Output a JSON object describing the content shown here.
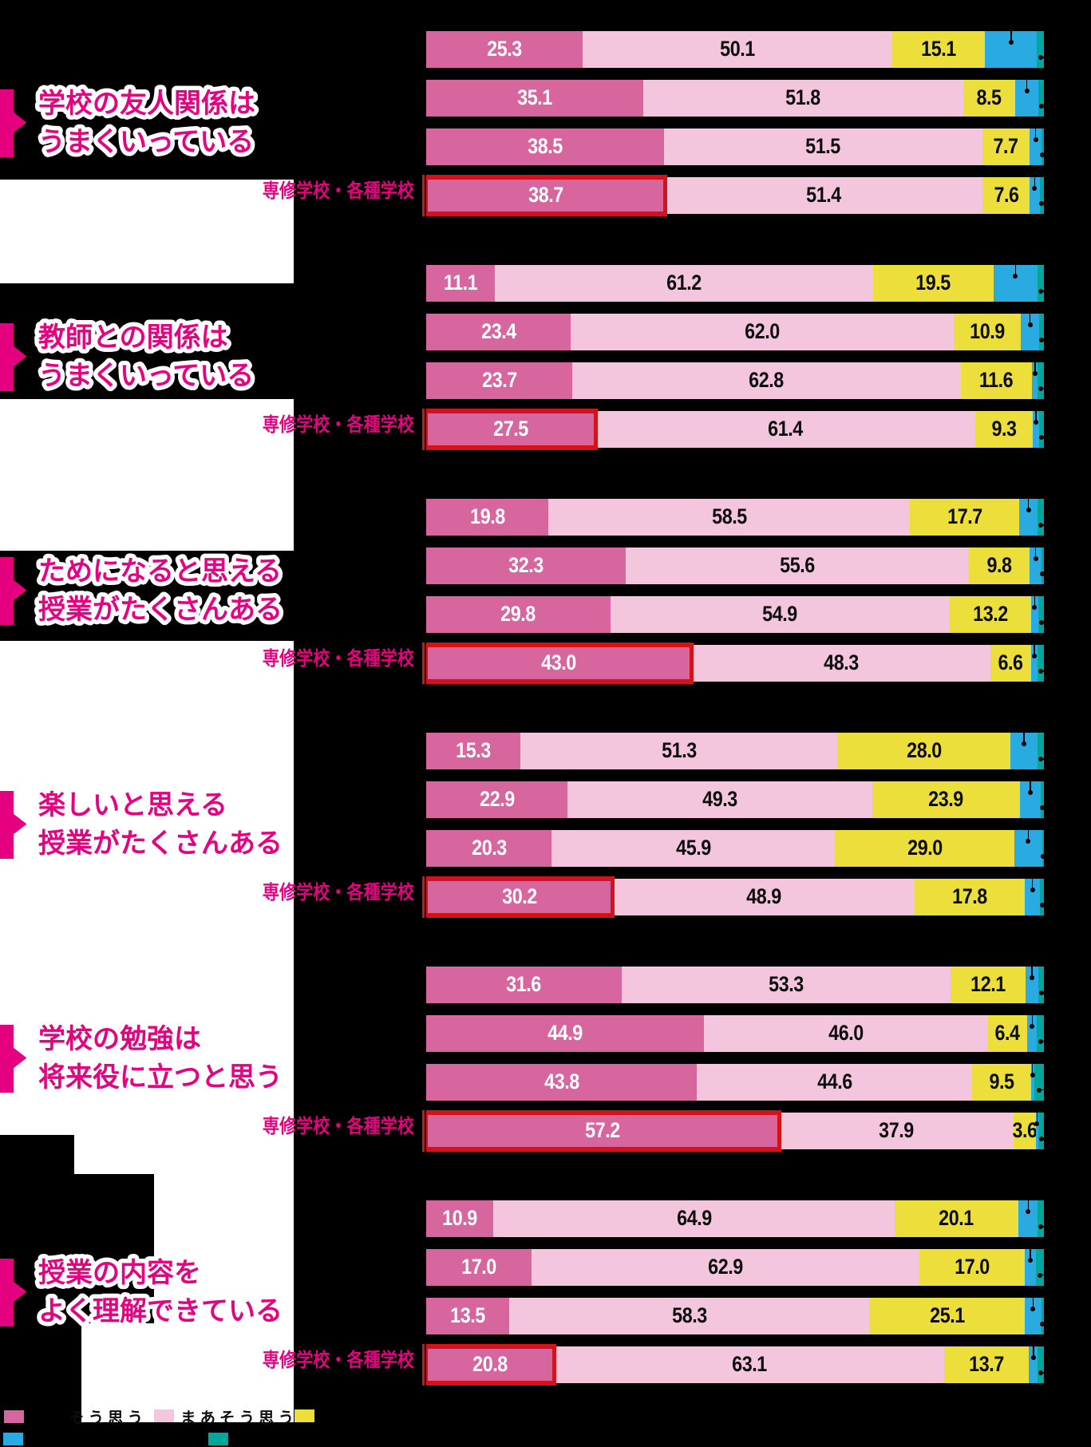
{
  "chart_data": {
    "type": "bar",
    "orientation": "horizontal-stacked",
    "unit": "%",
    "axis_range": [
      0,
      100
    ],
    "colors": {
      "agree": "#d7659e",
      "somewhat_agree": "#f3c6dd",
      "somewhat_disagree": "#ecdf3b",
      "disagree": "#29abe2",
      "no_answer": "#00a79b",
      "highlight_frame": "#d3121c",
      "accent_magenta": "#e4007f",
      "background": "#000000",
      "panel": "#ffffff"
    },
    "legend": {
      "row1": [
        {
          "key": "agree",
          "color": "#d7659e",
          "label": "そう思う"
        },
        {
          "key": "somewhat_agree",
          "color": "#f3c6dd",
          "label": "まあそう思う"
        },
        {
          "key": "somewhat_disagree",
          "color": "#ecdf3b",
          "label": ""
        }
      ],
      "row2": [
        {
          "key": "disagree",
          "color": "#29abe2",
          "label": ""
        },
        {
          "key": "no_answer",
          "color": "#00a79b",
          "label": ""
        }
      ]
    },
    "highlight_row_label": "専修学校・各種学校",
    "sections": [
      {
        "title": [
          "学校の友人関係は",
          "うまくいっている"
        ],
        "rows": [
          {
            "label": "",
            "highlighted": false,
            "agree": 25.3,
            "somewhat_agree": 50.1,
            "somewhat_disagree": 15.1,
            "disagree_est": 8.4,
            "no_answer_est": 1.1
          },
          {
            "label": "",
            "highlighted": false,
            "agree": 35.1,
            "somewhat_agree": 51.8,
            "somewhat_disagree": 8.5,
            "disagree_est": 3.7,
            "no_answer_est": 0.9
          },
          {
            "label": "",
            "highlighted": false,
            "agree": 38.5,
            "somewhat_agree": 51.5,
            "somewhat_disagree": 7.7,
            "disagree_est": 1.9,
            "no_answer_est": 0.4
          },
          {
            "label": "専修学校・各種学校",
            "highlighted": true,
            "agree": 38.7,
            "somewhat_agree": 51.4,
            "somewhat_disagree": 7.6,
            "disagree_est": 1.6,
            "no_answer_est": 0.7
          }
        ]
      },
      {
        "title": [
          "教師との関係は",
          "うまくいっている"
        ],
        "rows": [
          {
            "label": "",
            "highlighted": false,
            "agree": 11.1,
            "somewhat_agree": 61.2,
            "somewhat_disagree": 19.5,
            "disagree_est": 7.2,
            "no_answer_est": 1.0
          },
          {
            "label": "",
            "highlighted": false,
            "agree": 23.4,
            "somewhat_agree": 62.0,
            "somewhat_disagree": 10.9,
            "disagree_est": 2.9,
            "no_answer_est": 0.8
          },
          {
            "label": "",
            "highlighted": false,
            "agree": 23.7,
            "somewhat_agree": 62.8,
            "somewhat_disagree": 11.6,
            "disagree_est": 0.9,
            "no_answer_est": 1.0
          },
          {
            "label": "専修学校・各種学校",
            "highlighted": true,
            "agree": 27.5,
            "somewhat_agree": 61.4,
            "somewhat_disagree": 9.3,
            "disagree_est": 1.0,
            "no_answer_est": 0.8
          }
        ]
      },
      {
        "title": [
          "ためになると思える",
          "授業がたくさんある"
        ],
        "rows": [
          {
            "label": "",
            "highlighted": false,
            "agree": 19.8,
            "somewhat_agree": 58.5,
            "somewhat_disagree": 17.7,
            "disagree_est": 3.0,
            "no_answer_est": 1.0
          },
          {
            "label": "",
            "highlighted": false,
            "agree": 32.3,
            "somewhat_agree": 55.6,
            "somewhat_disagree": 9.8,
            "disagree_est": 1.9,
            "no_answer_est": 0.4
          },
          {
            "label": "",
            "highlighted": false,
            "agree": 29.8,
            "somewhat_agree": 54.9,
            "somewhat_disagree": 13.2,
            "disagree_est": 1.2,
            "no_answer_est": 0.9
          },
          {
            "label": "専修学校・各種学校",
            "highlighted": true,
            "agree": 43.0,
            "somewhat_agree": 48.3,
            "somewhat_disagree": 6.6,
            "disagree_est": 1.1,
            "no_answer_est": 1.0
          }
        ]
      },
      {
        "title": [
          "楽しいと思える",
          "授業がたくさんある"
        ],
        "rows": [
          {
            "label": "",
            "highlighted": false,
            "agree": 15.3,
            "somewhat_agree": 51.3,
            "somewhat_disagree": 28.0,
            "disagree_est": 4.4,
            "no_answer_est": 1.0
          },
          {
            "label": "",
            "highlighted": false,
            "agree": 22.9,
            "somewhat_agree": 49.3,
            "somewhat_disagree": 23.9,
            "disagree_est": 3.4,
            "no_answer_est": 0.5
          },
          {
            "label": "",
            "highlighted": false,
            "agree": 20.3,
            "somewhat_agree": 45.9,
            "somewhat_disagree": 29.0,
            "disagree_est": 4.5,
            "no_answer_est": 0.3
          },
          {
            "label": "専修学校・各種学校",
            "highlighted": true,
            "agree": 30.2,
            "somewhat_agree": 48.9,
            "somewhat_disagree": 17.8,
            "disagree_est": 2.5,
            "no_answer_est": 0.6
          }
        ]
      },
      {
        "title": [
          "学校の勉強は",
          "将来役に立つと思う"
        ],
        "rows": [
          {
            "label": "",
            "highlighted": false,
            "agree": 31.6,
            "somewhat_agree": 53.3,
            "somewhat_disagree": 12.1,
            "disagree_est": 2.1,
            "no_answer_est": 0.9
          },
          {
            "label": "",
            "highlighted": false,
            "agree": 44.9,
            "somewhat_agree": 46.0,
            "somewhat_disagree": 6.4,
            "disagree_est": 1.6,
            "no_answer_est": 1.1
          },
          {
            "label": "",
            "highlighted": false,
            "agree": 43.8,
            "somewhat_agree": 44.6,
            "somewhat_disagree": 9.5,
            "disagree_est": 0.5,
            "no_answer_est": 1.6
          },
          {
            "label": "専修学校・各種学校",
            "highlighted": true,
            "agree": 57.2,
            "somewhat_agree": 37.9,
            "somewhat_disagree": 3.6,
            "disagree_est": 0.4,
            "no_answer_est": 0.9
          }
        ]
      },
      {
        "title": [
          "授業の内容を",
          "よく理解できている"
        ],
        "rows": [
          {
            "label": "",
            "highlighted": false,
            "agree": 10.9,
            "somewhat_agree": 64.9,
            "somewhat_disagree": 20.1,
            "disagree_est": 3.1,
            "no_answer_est": 1.0
          },
          {
            "label": "",
            "highlighted": false,
            "agree": 17.0,
            "somewhat_agree": 62.9,
            "somewhat_disagree": 17.0,
            "disagree_est": 1.8,
            "no_answer_est": 1.3
          },
          {
            "label": "",
            "highlighted": false,
            "agree": 13.5,
            "somewhat_agree": 58.3,
            "somewhat_disagree": 25.1,
            "disagree_est": 2.7,
            "no_answer_est": 0.4
          },
          {
            "label": "専修学校・各種学校",
            "highlighted": true,
            "agree": 20.8,
            "somewhat_agree": 63.1,
            "somewhat_disagree": 13.7,
            "disagree_est": 1.4,
            "no_answer_est": 1.0
          }
        ]
      }
    ]
  }
}
